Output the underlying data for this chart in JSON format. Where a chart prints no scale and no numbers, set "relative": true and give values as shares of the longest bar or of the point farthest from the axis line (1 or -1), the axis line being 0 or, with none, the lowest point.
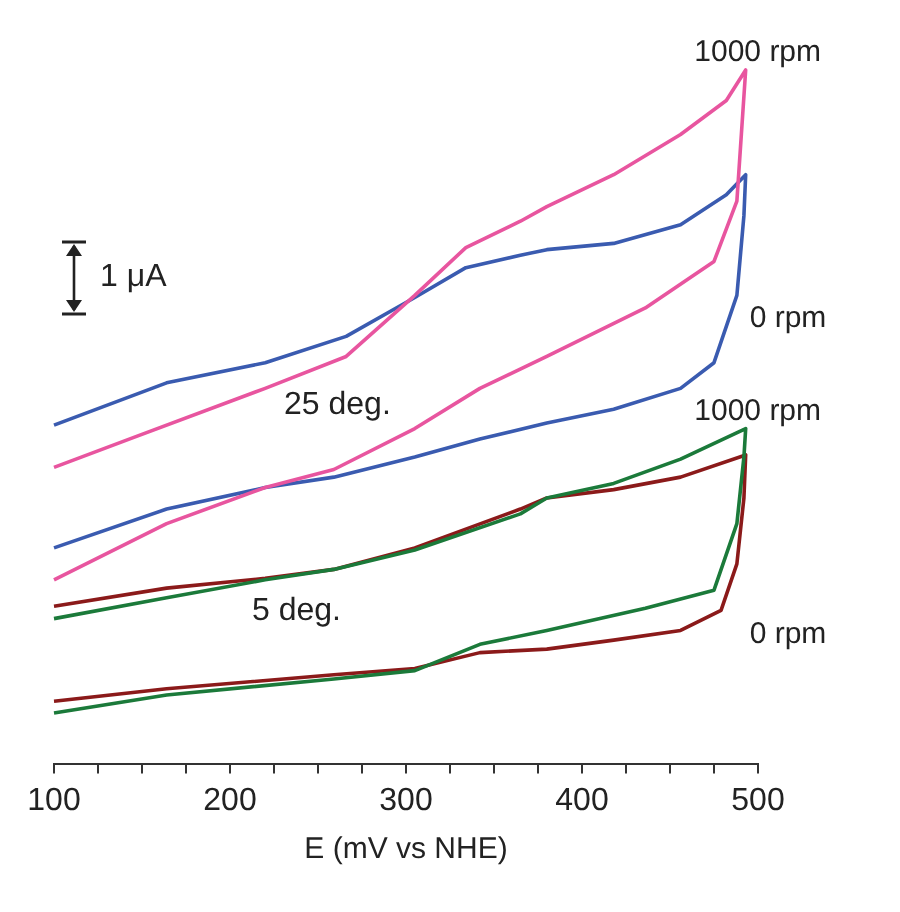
{
  "chart_data": {
    "type": "line",
    "relative": true,
    "xlabel": "E (mV vs NHE)",
    "xlim": [
      100,
      500
    ],
    "xticks": [
      100,
      {
        "value": 125,
        "label": null
      },
      {
        "value": 150,
        "label": null
      },
      {
        "value": 175,
        "label": null
      },
      200,
      {
        "value": 225,
        "label": null
      },
      {
        "value": 250,
        "label": null
      },
      {
        "value": 275,
        "label": null
      },
      300,
      {
        "value": 325,
        "label": null
      },
      {
        "value": 350,
        "label": null
      },
      {
        "value": 375,
        "label": null
      },
      400,
      {
        "value": 425,
        "label": null
      },
      {
        "value": 450,
        "label": null
      },
      {
        "value": 475,
        "label": null
      },
      500
    ],
    "grid": false,
    "legend": false,
    "marker": "none",
    "line_style": "solid",
    "series": [
      {
        "name": "1000 rpm",
        "color": "#e8559f",
        "x": [
          100,
          145,
          220,
          266,
          305,
          334,
          365,
          380,
          418,
          456,
          482,
          493,
          488,
          475,
          436,
          380,
          342,
          305,
          259,
          220,
          164,
          100
        ],
        "values": [
          0.427,
          0.47,
          0.541,
          0.587,
          0.675,
          0.744,
          0.782,
          0.803,
          0.849,
          0.907,
          0.956,
          1.0,
          0.811,
          0.724,
          0.657,
          0.587,
          0.541,
          0.483,
          0.424,
          0.398,
          0.346,
          0.265
        ]
      },
      {
        "name": "0 rpm",
        "color": "#3a5bb0",
        "x": [
          100,
          164,
          220,
          266,
          305,
          334,
          365,
          380,
          418,
          456,
          482,
          493,
          492,
          488,
          475,
          456,
          418,
          380,
          342,
          305,
          259,
          220,
          164,
          100
        ],
        "values": [
          0.488,
          0.549,
          0.578,
          0.616,
          0.672,
          0.715,
          0.733,
          0.741,
          0.75,
          0.777,
          0.82,
          0.849,
          0.79,
          0.675,
          0.578,
          0.541,
          0.511,
          0.491,
          0.468,
          0.442,
          0.413,
          0.398,
          0.367,
          0.311
        ]
      },
      {
        "name": "1000 rpm",
        "color": "#1b7a3a",
        "x": [
          100,
          164,
          220,
          259,
          305,
          365,
          380,
          418,
          456,
          493,
          492,
          488,
          475,
          436,
          380,
          342,
          305,
          259,
          164,
          100
        ],
        "values": [
          0.209,
          0.239,
          0.265,
          0.28,
          0.308,
          0.36,
          0.383,
          0.404,
          0.439,
          0.483,
          0.442,
          0.346,
          0.25,
          0.224,
          0.192,
          0.172,
          0.134,
          0.122,
          0.099,
          0.073
        ]
      },
      {
        "name": "0 rpm",
        "color": "#8b1a1a",
        "x": [
          100,
          164,
          220,
          259,
          305,
          365,
          380,
          418,
          456,
          493,
          492,
          488,
          479,
          456,
          418,
          380,
          342,
          305,
          259,
          164,
          100
        ],
        "values": [
          0.227,
          0.253,
          0.267,
          0.28,
          0.311,
          0.367,
          0.383,
          0.395,
          0.413,
          0.445,
          0.383,
          0.288,
          0.221,
          0.192,
          0.178,
          0.165,
          0.16,
          0.137,
          0.128,
          0.108,
          0.09
        ]
      }
    ],
    "annotations": [
      "25 deg.",
      "5 deg.",
      "1 μA"
    ]
  }
}
